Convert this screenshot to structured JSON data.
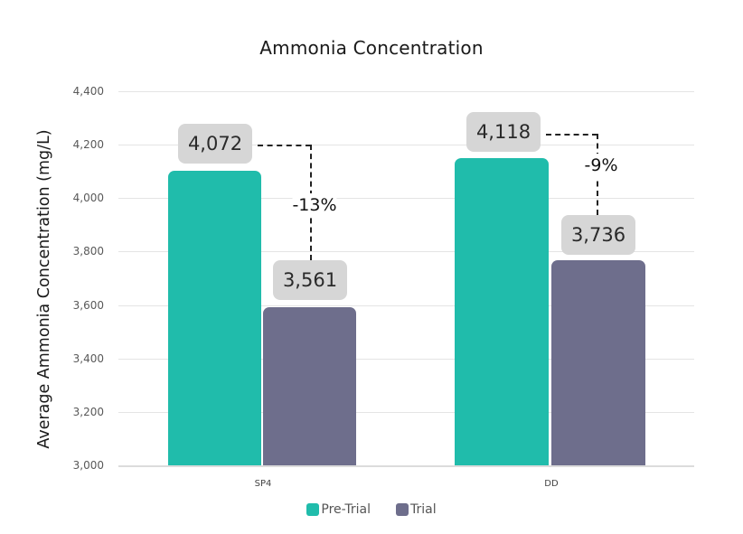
{
  "chart_data": {
    "type": "bar",
    "title": "Ammonia Concentration",
    "xlabel": "",
    "ylabel": "Average Ammonia Concentration (mg/L)",
    "ylim": [
      3000,
      4400
    ],
    "yticks": [
      "4,400",
      "4,200",
      "4,000",
      "3,800",
      "3,600",
      "3,400",
      "3,200",
      "3,000"
    ],
    "categories": [
      "SP4",
      "DD"
    ],
    "series": [
      {
        "name": "Pre-Trial",
        "color": "#20bcab",
        "values": [
          4072,
          4118
        ],
        "labels": [
          "4,072",
          "4,118"
        ]
      },
      {
        "name": "Trial",
        "color": "#6e6e8c",
        "values": [
          3561,
          3736
        ],
        "labels": [
          "3,561",
          "3,736"
        ]
      }
    ],
    "annotations": [
      {
        "category": "SP4",
        "change": "-13%"
      },
      {
        "category": "DD",
        "change": "-9%"
      }
    ],
    "grid": true,
    "legend_position": "bottom"
  }
}
